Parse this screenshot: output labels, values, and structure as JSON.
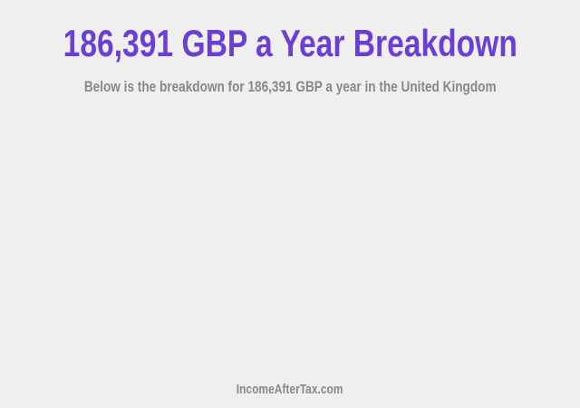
{
  "header": {
    "title": "186,391 GBP a Year Breakdown",
    "subtitle": "Below is the breakdown for 186,391 GBP a year in the United Kingdom"
  },
  "footer": {
    "site": "IncomeAfterTax.com"
  },
  "colors": {
    "title": "#6b3fd6",
    "text": "#888888",
    "background": "#efefef"
  }
}
